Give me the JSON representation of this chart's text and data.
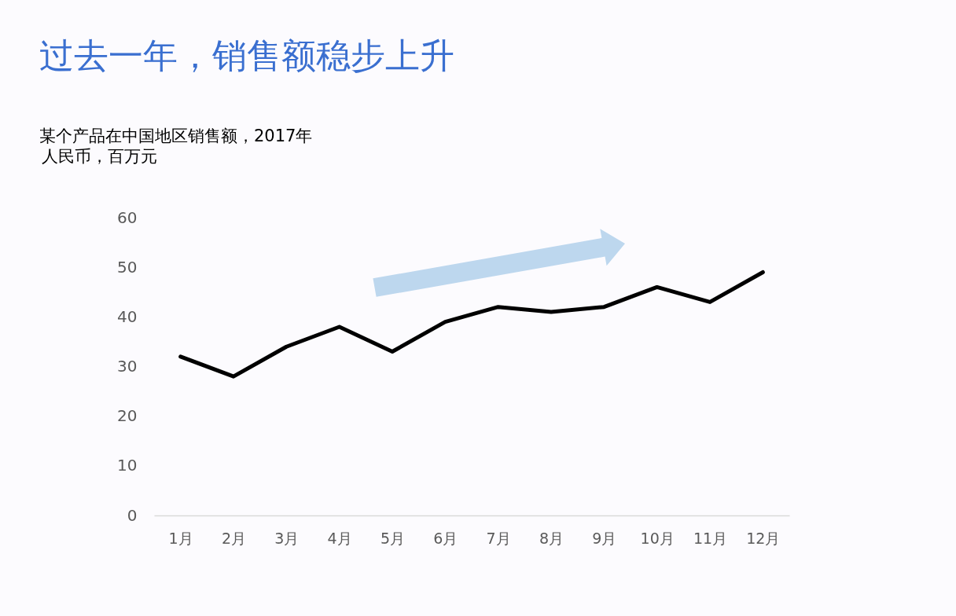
{
  "chart_data": {
    "type": "line",
    "title": "过去一年，销售额稳步上升",
    "subtitle": "某个产品在中国地区销售额，2017年",
    "ylabel": "人民币，百万元",
    "categories": [
      "1月",
      "2月",
      "3月",
      "4月",
      "5月",
      "6月",
      "7月",
      "8月",
      "9月",
      "10月",
      "11月",
      "12月"
    ],
    "series": [
      {
        "color": "#000000",
        "values": [
          32,
          28,
          34,
          38,
          33,
          39,
          42,
          41,
          42,
          46,
          43,
          49
        ]
      }
    ],
    "ylim": [
      0,
      60
    ],
    "yticks": [
      0,
      10,
      20,
      30,
      40,
      50,
      60
    ],
    "grid": false
  }
}
